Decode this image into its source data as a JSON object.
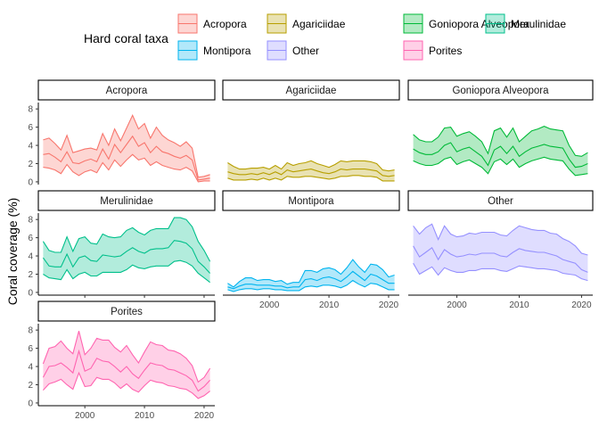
{
  "chart_data": {
    "type": "area",
    "ylabel": "Coral coverage (%)",
    "legend": {
      "title": "Hard coral taxa",
      "placement": "top",
      "entries": [
        "Acropora",
        "Agariciidae",
        "Goniopora Alveopora",
        "Merulinidae",
        "Montipora",
        "Other",
        "Porites"
      ]
    },
    "x_ticks": [
      2000,
      2010,
      2020
    ],
    "y_ticks": [
      0,
      2,
      4,
      6,
      8
    ],
    "xlim": [
      1992.2,
      2021.8
    ],
    "ylim": [
      -0.3,
      8.7
    ],
    "x": [
      1993,
      1994,
      1995,
      1996,
      1997,
      1998,
      1999,
      2000,
      2001,
      2002,
      2003,
      2004,
      2005,
      2006,
      2007,
      2008,
      2009,
      2010,
      2011,
      2012,
      2013,
      2014,
      2015,
      2016,
      2017,
      2018,
      2019,
      2020,
      2021
    ],
    "panels": [
      {
        "name": "Acropora",
        "color": "#F8766D",
        "upper": [
          4.6,
          4.8,
          4.2,
          3.5,
          5.1,
          3.2,
          3.4,
          3.6,
          3.7,
          3.5,
          5.3,
          4.0,
          5.8,
          4.5,
          5.9,
          7.3,
          5.8,
          6.4,
          4.8,
          6.0,
          5.1,
          4.6,
          4.3,
          3.9,
          4.4,
          3.7,
          0.5,
          0.6,
          0.8
        ],
        "mid": [
          3.0,
          3.1,
          2.7,
          2.2,
          3.3,
          2.1,
          2.0,
          2.3,
          2.5,
          2.2,
          3.6,
          2.5,
          4.1,
          3.2,
          4.1,
          5.0,
          3.9,
          4.3,
          3.2,
          3.9,
          3.3,
          3.1,
          2.8,
          2.6,
          2.9,
          2.4,
          0.2,
          0.3,
          0.4
        ],
        "lower": [
          1.6,
          1.5,
          1.3,
          0.9,
          1.9,
          1.1,
          0.7,
          1.1,
          1.3,
          1.0,
          2.1,
          1.3,
          2.4,
          1.7,
          2.4,
          3.0,
          2.4,
          2.6,
          1.8,
          2.2,
          1.8,
          1.6,
          1.4,
          1.3,
          1.6,
          1.2,
          0.0,
          0.1,
          0.1
        ]
      },
      {
        "name": "Agariciidae",
        "color": "#B79F00",
        "upper": [
          2.1,
          1.7,
          1.4,
          1.4,
          1.5,
          1.5,
          1.6,
          1.4,
          1.8,
          1.4,
          2.1,
          1.8,
          2.0,
          2.1,
          2.3,
          2.0,
          1.8,
          1.6,
          1.9,
          2.3,
          2.2,
          2.3,
          2.3,
          2.3,
          2.2,
          2.0,
          1.3,
          1.2,
          1.3
        ],
        "mid": [
          1.1,
          0.9,
          0.8,
          0.8,
          0.9,
          0.8,
          1.0,
          0.8,
          1.1,
          0.8,
          1.3,
          1.1,
          1.2,
          1.3,
          1.4,
          1.2,
          1.0,
          0.9,
          1.1,
          1.4,
          1.3,
          1.4,
          1.4,
          1.4,
          1.3,
          1.2,
          0.7,
          0.6,
          0.7
        ],
        "lower": [
          0.4,
          0.2,
          0.2,
          0.2,
          0.3,
          0.2,
          0.4,
          0.2,
          0.4,
          0.2,
          0.6,
          0.5,
          0.5,
          0.6,
          0.6,
          0.5,
          0.4,
          0.3,
          0.4,
          0.6,
          0.6,
          0.7,
          0.7,
          0.6,
          0.6,
          0.5,
          0.1,
          0.1,
          0.1
        ]
      },
      {
        "name": "Goniopora Alveopora",
        "color": "#00BA38",
        "upper": [
          5.2,
          4.6,
          4.4,
          4.4,
          4.9,
          5.9,
          6.0,
          5.0,
          5.3,
          5.5,
          5.0,
          4.4,
          3.1,
          5.6,
          5.9,
          4.9,
          5.9,
          4.4,
          5.0,
          5.6,
          5.8,
          6.1,
          5.8,
          5.7,
          5.6,
          4.0,
          2.9,
          2.8,
          3.2
        ],
        "mid": [
          3.6,
          3.2,
          3.0,
          3.0,
          3.3,
          4.0,
          4.3,
          3.3,
          3.6,
          3.8,
          3.3,
          2.8,
          1.8,
          3.5,
          3.9,
          3.1,
          3.9,
          2.8,
          3.3,
          3.7,
          3.9,
          4.1,
          3.9,
          3.8,
          3.7,
          2.5,
          1.6,
          1.7,
          2.0
        ],
        "lower": [
          2.3,
          2.0,
          1.8,
          1.8,
          2.0,
          2.5,
          2.7,
          1.9,
          2.2,
          2.4,
          2.0,
          1.6,
          0.9,
          2.2,
          2.5,
          1.9,
          2.5,
          1.6,
          2.0,
          2.3,
          2.5,
          2.7,
          2.5,
          2.4,
          2.3,
          1.4,
          0.7,
          0.8,
          0.9
        ]
      },
      {
        "name": "Merulinidae",
        "color": "#00C08B",
        "upper": [
          5.6,
          4.6,
          4.4,
          4.4,
          6.1,
          4.5,
          5.9,
          6.1,
          5.4,
          5.3,
          6.4,
          6.1,
          6.0,
          6.1,
          6.8,
          7.1,
          6.6,
          6.3,
          6.8,
          7.0,
          7.0,
          7.0,
          8.2,
          8.2,
          8.0,
          7.2,
          5.6,
          4.6,
          3.4
        ],
        "mid": [
          3.8,
          2.9,
          2.8,
          2.8,
          4.2,
          2.8,
          3.8,
          4.0,
          3.5,
          3.4,
          4.1,
          4.0,
          3.9,
          4.0,
          4.5,
          4.9,
          4.5,
          4.3,
          4.7,
          4.8,
          4.8,
          4.9,
          5.7,
          5.6,
          5.4,
          4.8,
          3.4,
          2.8,
          2.1
        ],
        "lower": [
          2.0,
          1.6,
          1.5,
          1.4,
          2.5,
          1.5,
          2.0,
          2.2,
          1.8,
          1.8,
          2.2,
          2.2,
          2.2,
          2.2,
          2.5,
          3.0,
          2.7,
          2.6,
          2.8,
          2.9,
          2.9,
          2.9,
          3.4,
          3.5,
          3.3,
          2.9,
          2.1,
          1.6,
          1.1
        ]
      },
      {
        "name": "Montipora",
        "color": "#00B4EF",
        "upper": [
          1.0,
          0.6,
          1.2,
          1.6,
          1.6,
          1.3,
          1.4,
          1.4,
          1.2,
          1.3,
          0.9,
          1.1,
          1.1,
          2.4,
          2.4,
          2.2,
          2.6,
          2.7,
          2.5,
          2.0,
          2.7,
          3.6,
          2.8,
          2.2,
          3.1,
          3.0,
          2.5,
          1.7,
          1.9
        ],
        "mid": [
          0.6,
          0.4,
          0.7,
          0.9,
          0.9,
          0.8,
          0.8,
          0.8,
          0.7,
          0.7,
          0.5,
          0.6,
          0.6,
          1.4,
          1.5,
          1.3,
          1.6,
          1.7,
          1.5,
          1.2,
          1.7,
          2.3,
          1.8,
          1.3,
          2.0,
          1.8,
          1.4,
          1.0,
          1.0
        ],
        "lower": [
          0.3,
          0.1,
          0.3,
          0.4,
          0.4,
          0.3,
          0.4,
          0.4,
          0.3,
          0.3,
          0.2,
          0.2,
          0.2,
          0.6,
          0.7,
          0.6,
          0.8,
          0.8,
          0.7,
          0.5,
          0.8,
          1.3,
          0.9,
          0.6,
          1.0,
          0.9,
          0.6,
          0.3,
          0.3
        ]
      },
      {
        "name": "Other",
        "color": "#9590FF",
        "upper": [
          7.3,
          6.4,
          7.1,
          7.5,
          5.8,
          7.3,
          6.4,
          6.1,
          6.2,
          6.5,
          6.4,
          6.6,
          6.6,
          6.6,
          6.3,
          6.2,
          6.8,
          7.3,
          7.1,
          6.9,
          6.8,
          6.8,
          6.5,
          6.4,
          5.9,
          5.6,
          5.1,
          4.3,
          4.1
        ],
        "mid": [
          5.1,
          3.9,
          4.4,
          4.9,
          3.6,
          4.7,
          4.2,
          3.9,
          4.0,
          4.2,
          4.1,
          4.3,
          4.3,
          4.3,
          4.0,
          3.9,
          4.4,
          4.8,
          4.6,
          4.5,
          4.4,
          4.4,
          4.2,
          4.0,
          3.6,
          3.4,
          3.2,
          2.5,
          2.2
        ],
        "lower": [
          3.2,
          2.0,
          2.4,
          2.8,
          1.9,
          2.7,
          2.4,
          2.2,
          2.2,
          2.4,
          2.4,
          2.6,
          2.6,
          2.6,
          2.4,
          2.3,
          2.6,
          2.9,
          2.8,
          2.7,
          2.6,
          2.6,
          2.5,
          2.4,
          2.1,
          2.0,
          1.9,
          1.5,
          1.3
        ]
      },
      {
        "name": "Porites",
        "color": "#FF64B0",
        "upper": [
          4.3,
          6.0,
          6.2,
          6.8,
          6.0,
          5.4,
          7.9,
          5.3,
          6.0,
          7.1,
          6.9,
          6.9,
          6.1,
          5.6,
          6.3,
          5.3,
          4.4,
          5.6,
          6.7,
          6.4,
          6.3,
          5.8,
          5.7,
          5.4,
          4.9,
          4.1,
          2.3,
          2.8,
          3.8
        ],
        "mid": [
          2.8,
          4.0,
          4.1,
          4.4,
          3.9,
          3.3,
          5.7,
          3.5,
          3.8,
          4.9,
          4.6,
          4.5,
          4.0,
          3.4,
          4.0,
          3.2,
          2.7,
          3.6,
          4.4,
          4.2,
          4.1,
          3.7,
          3.6,
          3.3,
          3.0,
          2.5,
          1.3,
          1.8,
          2.5
        ],
        "lower": [
          1.4,
          2.1,
          2.3,
          2.6,
          2.0,
          1.5,
          3.3,
          1.8,
          1.9,
          2.8,
          2.6,
          2.6,
          2.2,
          1.6,
          2.1,
          1.5,
          1.2,
          1.9,
          2.5,
          2.3,
          2.2,
          1.9,
          1.8,
          1.6,
          1.5,
          1.1,
          0.5,
          0.8,
          1.3
        ]
      }
    ]
  }
}
